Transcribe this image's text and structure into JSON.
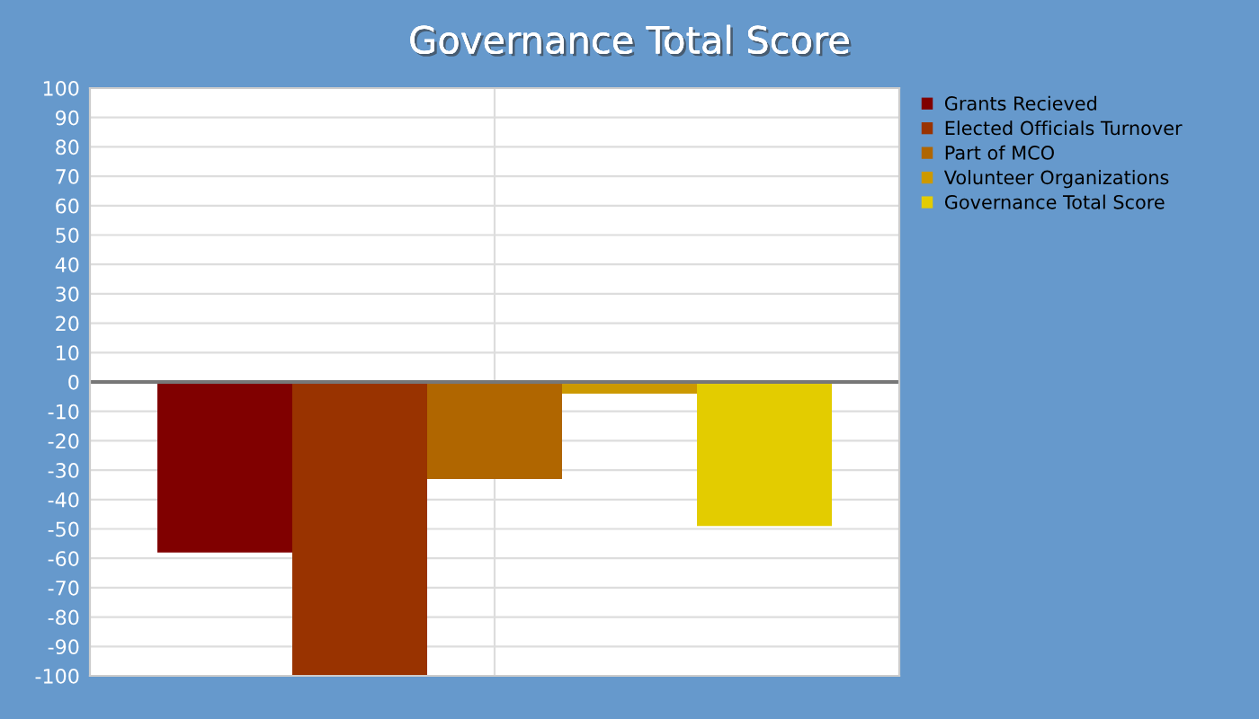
{
  "chart_data": {
    "type": "bar",
    "title": "Governance Total Score",
    "categories": [
      null
    ],
    "series": [
      {
        "name": "Grants Recieved",
        "color": "#800000",
        "values": [
          -58
        ]
      },
      {
        "name": "Elected Officials Turnover",
        "color": "#993300",
        "values": [
          -100
        ]
      },
      {
        "name": "Part of MCO",
        "color": "#b06600",
        "values": [
          -33
        ]
      },
      {
        "name": "Volunteer Organizations",
        "color": "#cc9900",
        "values": [
          -4
        ]
      },
      {
        "name": "Governance Total Score",
        "color": "#e3cc00",
        "values": [
          -49
        ]
      }
    ],
    "ylim": [
      -100,
      100
    ],
    "yticks": [
      -100,
      -90,
      -80,
      -70,
      -60,
      -50,
      -40,
      -30,
      -20,
      -10,
      0,
      10,
      20,
      30,
      40,
      50,
      60,
      70,
      80,
      90,
      100
    ],
    "grid": true,
    "legend": "right"
  }
}
